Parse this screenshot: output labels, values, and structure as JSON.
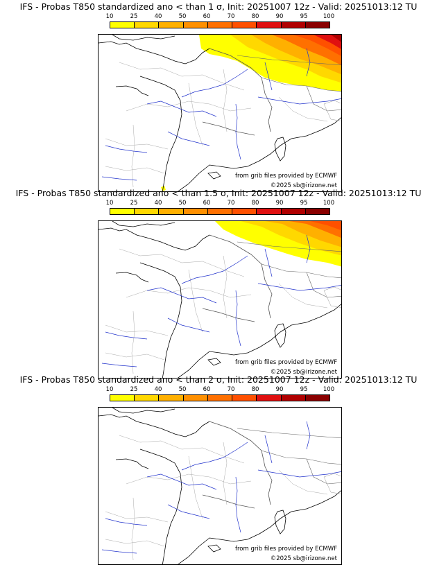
{
  "colorbar": {
    "labels": [
      "10",
      "25",
      "40",
      "50",
      "60",
      "70",
      "80",
      "90",
      "95",
      "100"
    ],
    "colors": [
      "#ffff00",
      "#ffd800",
      "#ffb000",
      "#ff9000",
      "#ff7000",
      "#ff5000",
      "#e01010",
      "#b00000",
      "#8a0000",
      "#5a0000"
    ]
  },
  "panels": [
    {
      "title": "IFS - Probas T850  standardized ano < than 1 σ, Init: 20251007 12z - Valid: 20251013:12 TU",
      "credit_source": "from grib files provided by ECMWF",
      "credit_copyright": "©2025 sb@irizone.net",
      "probability_extent": "large"
    },
    {
      "title": "IFS - Probas T850  standardized ano < than 1.5 σ, Init: 20251007 12z - Valid: 20251013:12 TU",
      "credit_source": "from grib files provided by ECMWF",
      "credit_copyright": "©2025 sb@irizone.net",
      "probability_extent": "medium"
    },
    {
      "title": "IFS - Probas T850  standardized ano < than 2 σ, Init: 20251007 12z - Valid: 20251013:12 TU",
      "credit_source": "from grib files provided by ECMWF",
      "credit_copyright": "©2025 sb@irizone.net",
      "probability_extent": "none"
    }
  ]
}
